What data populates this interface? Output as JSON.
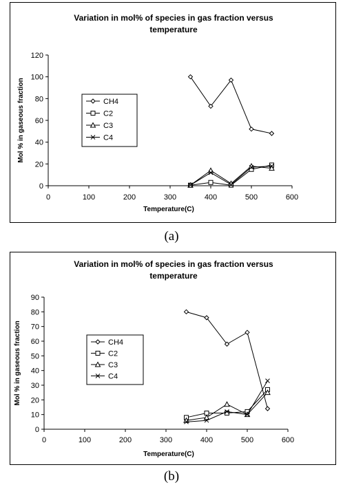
{
  "figures": [
    {
      "caption": "(a)",
      "chart_data": {
        "type": "line",
        "title": "Variation in mol% of species in gas fraction versus temperature",
        "title_lines": [
          "Variation in mol% of species in gas fraction versus",
          "temperature"
        ],
        "xlabel": "Temperature(C)",
        "ylabel": "Mol % in gaseous fraction",
        "xlim": [
          0,
          600
        ],
        "ylim": [
          0,
          120
        ],
        "xticks": [
          0,
          100,
          200,
          300,
          400,
          500,
          600
        ],
        "yticks": [
          0,
          20,
          40,
          60,
          80,
          100,
          120
        ],
        "grid": false,
        "legend_position": "left-middle",
        "x": [
          350,
          400,
          450,
          500,
          550
        ],
        "series": [
          {
            "name": "CH4",
            "marker": "diamond",
            "values": [
              100,
              73,
              97,
              52,
              48
            ]
          },
          {
            "name": "C2",
            "marker": "square",
            "values": [
              0.5,
              3,
              0.5,
              15,
              19
            ]
          },
          {
            "name": "C3",
            "marker": "triangle",
            "values": [
              0.5,
              14,
              2,
              18,
              16
            ]
          },
          {
            "name": "C4",
            "marker": "x",
            "values": [
              0.5,
              12,
              1,
              17,
              18
            ]
          }
        ]
      }
    },
    {
      "caption": "(b)",
      "chart_data": {
        "type": "line",
        "title": "Variation in mol% of species in gas fraction versus temperature",
        "title_lines": [
          "Variation in mol% of species in gas fraction versus",
          "temperature"
        ],
        "xlabel": "Temperature(C)",
        "ylabel": "Mol % in gaseous fraction",
        "xlim": [
          0,
          600
        ],
        "ylim": [
          0,
          90
        ],
        "xticks": [
          0,
          100,
          200,
          300,
          400,
          500,
          600
        ],
        "yticks": [
          0,
          10,
          20,
          30,
          40,
          50,
          60,
          70,
          80,
          90
        ],
        "grid": false,
        "legend_position": "left-middle",
        "x": [
          350,
          400,
          450,
          500,
          550
        ],
        "series": [
          {
            "name": "CH4",
            "marker": "diamond",
            "values": [
              80,
              76,
              58,
              66,
              14
            ]
          },
          {
            "name": "C2",
            "marker": "square",
            "values": [
              8,
              11,
              11,
              12,
              27
            ]
          },
          {
            "name": "C3",
            "marker": "triangle",
            "values": [
              6,
              8,
              17,
              10,
              25
            ]
          },
          {
            "name": "C4",
            "marker": "x",
            "values": [
              5,
              6,
              12,
              10,
              33
            ]
          }
        ]
      }
    }
  ]
}
